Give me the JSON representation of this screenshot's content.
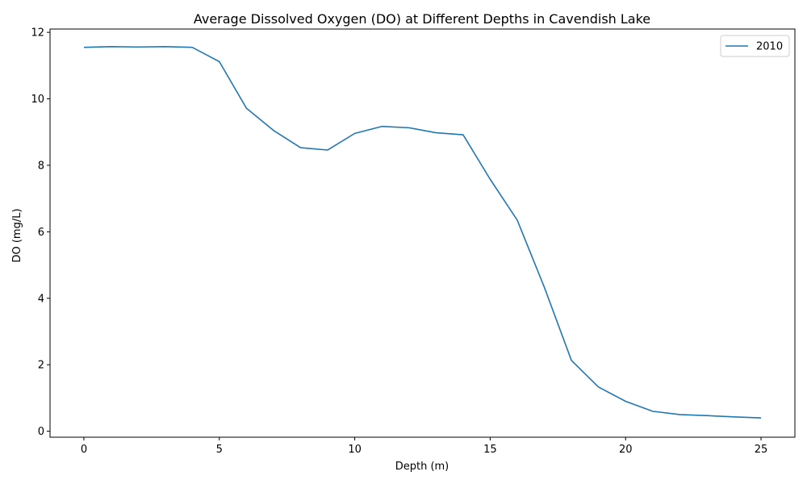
{
  "chart_data": {
    "type": "line",
    "title": "Average Dissolved Oxygen (DO) at Different Depths in Cavendish Lake",
    "xlabel": "Depth (m)",
    "ylabel": "DO (mg/L)",
    "xlim": [
      -1.25,
      26.25
    ],
    "ylim": [
      -0.18,
      12.1
    ],
    "xticks": [
      0,
      5,
      10,
      15,
      20,
      25
    ],
    "yticks": [
      0,
      2,
      4,
      6,
      8,
      10,
      12
    ],
    "grid": false,
    "legend_position": "top-right",
    "series": [
      {
        "name": "2010",
        "color": "#1f77b4",
        "x": [
          0,
          1,
          2,
          3,
          4,
          5,
          6,
          7,
          8,
          9,
          10,
          11,
          12,
          13,
          14,
          15,
          16,
          17,
          18,
          19,
          20,
          21,
          22,
          23,
          24,
          25
        ],
        "y": [
          11.55,
          11.57,
          11.56,
          11.57,
          11.55,
          11.12,
          9.72,
          9.05,
          8.53,
          8.46,
          8.96,
          9.17,
          9.13,
          8.98,
          8.92,
          7.58,
          6.35,
          4.33,
          2.13,
          1.33,
          0.9,
          0.6,
          0.5,
          0.47,
          0.43,
          0.4
        ]
      }
    ]
  }
}
